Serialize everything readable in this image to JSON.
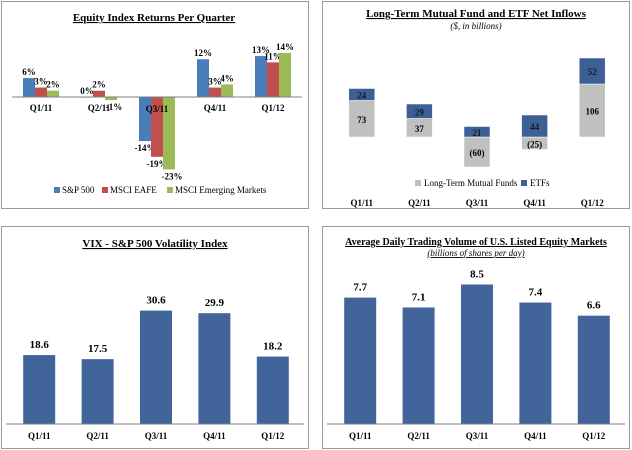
{
  "chart_data": [
    {
      "type": "bar",
      "title": "Equity Index Returns Per Quarter",
      "categories": [
        "Q1/11",
        "Q2/11",
        "Q3/11",
        "Q4/11",
        "Q1/12"
      ],
      "series": [
        {
          "name": "S&P 500",
          "values": [
            6,
            0,
            -14,
            12,
            13
          ],
          "labels": [
            "6%",
            "0%",
            "-14%",
            "12%",
            "13%"
          ],
          "color": "#4a7ebb"
        },
        {
          "name": "MSCI EAFE",
          "values": [
            3,
            2,
            -19,
            3,
            11
          ],
          "labels": [
            "3%",
            "2%",
            "-19%",
            "3%",
            "11%"
          ],
          "color": "#c0504d"
        },
        {
          "name": "MSCI Emerging Markets",
          "values": [
            2,
            -1,
            -23,
            4,
            14
          ],
          "labels": [
            "2%",
            "-1%",
            "-23%",
            "4%",
            "14%"
          ],
          "color": "#9bbb59"
        }
      ],
      "ylim": [
        -25,
        15
      ],
      "legend": "bottom",
      "grid": false
    },
    {
      "type": "bar",
      "stacked": true,
      "title": "Long-Term Mutual Fund and ETF Net Inflows",
      "subtitle": "($, in billions)",
      "categories": [
        "Q1/11",
        "Q2/11",
        "Q3/11",
        "Q4/11",
        "Q1/12"
      ],
      "series": [
        {
          "name": "Long-Term Mutual Funds",
          "values": [
            73,
            37,
            -60,
            -25,
            106
          ],
          "labels": [
            "73",
            "37",
            "(60)",
            "(25)",
            "106"
          ],
          "color": "#c0c0c0"
        },
        {
          "name": "ETFs",
          "values": [
            24,
            29,
            21,
            44,
            52
          ],
          "labels": [
            "24",
            "29",
            "21",
            "44",
            "52"
          ],
          "color": "#3c5f95"
        }
      ],
      "ylim": [
        -70,
        165
      ],
      "legend": "bottom",
      "grid": false
    },
    {
      "type": "bar",
      "title": "VIX - S&P 500 Volatility Index",
      "categories": [
        "Q1/11",
        "Q2/11",
        "Q3/11",
        "Q4/11",
        "Q1/12"
      ],
      "values": [
        18.6,
        17.5,
        30.6,
        29.9,
        18.2
      ],
      "labels": [
        "18.6",
        "17.5",
        "30.6",
        "29.9",
        "18.2"
      ],
      "color": "#41659b",
      "ylim": [
        0,
        34
      ],
      "grid": false
    },
    {
      "type": "bar",
      "title": "Average Daily Trading Volume of U.S. Listed Equity Markets",
      "subtitle": "(billions of shares per day)",
      "categories": [
        "Q1/11",
        "Q2/11",
        "Q3/11",
        "Q4/11",
        "Q1/12"
      ],
      "values": [
        7.7,
        7.1,
        8.5,
        7.4,
        6.6
      ],
      "labels": [
        "7.7",
        "7.1",
        "8.5",
        "7.4",
        "6.6"
      ],
      "color": "#41659b",
      "ylim": [
        0,
        9.2
      ],
      "grid": false
    }
  ]
}
